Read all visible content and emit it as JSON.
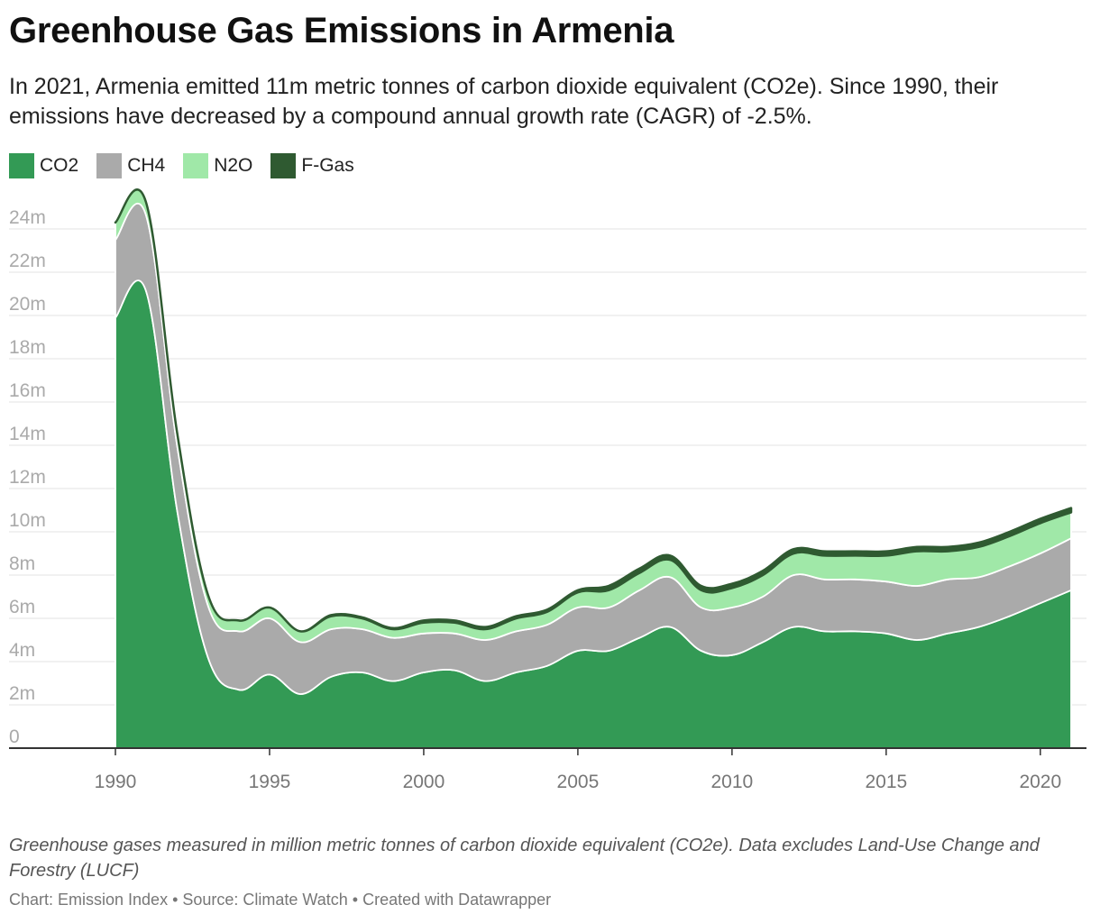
{
  "chart_data": {
    "type": "area",
    "stacked": true,
    "title": "Greenhouse Gas Emissions in Armenia",
    "subtitle": "In 2021, Armenia emitted 11m metric tonnes of carbon dioxide equivalent (CO2e). Since 1990, their emissions have decreased by a compound annual growth rate (CAGR) of -2.5%.",
    "notes": "Greenhouse gases measured in million metric tonnes of carbon dioxide equivalent (CO2e). Data excludes Land-Use Change and Forestry (LUCF)",
    "credit": "Chart: Emission Index • Source: Climate Watch • Created with Datawrapper",
    "x": [
      1990,
      1991,
      1992,
      1993,
      1994,
      1995,
      1996,
      1997,
      1998,
      1999,
      2000,
      2001,
      2002,
      2003,
      2004,
      2005,
      2006,
      2007,
      2008,
      2009,
      2010,
      2011,
      2012,
      2013,
      2014,
      2015,
      2016,
      2017,
      2018,
      2019,
      2020,
      2021
    ],
    "series": [
      {
        "name": "CO2",
        "color": "#339a55",
        "values": [
          19.9,
          21.1,
          11.0,
          4.2,
          2.7,
          3.4,
          2.5,
          3.3,
          3.5,
          3.1,
          3.5,
          3.6,
          3.1,
          3.5,
          3.8,
          4.5,
          4.5,
          5.1,
          5.6,
          4.5,
          4.3,
          4.9,
          5.6,
          5.4,
          5.4,
          5.3,
          5.0,
          5.3,
          5.6,
          6.1,
          6.7,
          7.3
        ]
      },
      {
        "name": "CH4",
        "color": "#aaaaaa",
        "values": [
          3.6,
          3.5,
          3.0,
          2.4,
          2.7,
          2.6,
          2.4,
          2.2,
          2.0,
          2.0,
          1.8,
          1.7,
          1.9,
          1.9,
          1.9,
          2.0,
          2.0,
          2.2,
          2.3,
          2.0,
          2.2,
          2.1,
          2.4,
          2.4,
          2.4,
          2.4,
          2.5,
          2.5,
          2.3,
          2.3,
          2.3,
          2.4
        ]
      },
      {
        "name": "N2O",
        "color": "#a0e8a8",
        "values": [
          0.8,
          0.6,
          0.6,
          0.5,
          0.5,
          0.5,
          0.5,
          0.6,
          0.5,
          0.4,
          0.5,
          0.5,
          0.5,
          0.6,
          0.6,
          0.7,
          0.8,
          0.8,
          0.8,
          0.8,
          0.9,
          1.0,
          1.0,
          1.1,
          1.1,
          1.2,
          1.6,
          1.3,
          1.4,
          1.4,
          1.4,
          1.2
        ]
      },
      {
        "name": "F-Gas",
        "color": "#2f5a31",
        "values": [
          0.0,
          0.0,
          0.0,
          0.0,
          0.0,
          0.0,
          0.0,
          0.05,
          0.05,
          0.05,
          0.1,
          0.1,
          0.1,
          0.1,
          0.1,
          0.1,
          0.2,
          0.2,
          0.2,
          0.2,
          0.2,
          0.2,
          0.2,
          0.2,
          0.2,
          0.2,
          0.2,
          0.2,
          0.2,
          0.2,
          0.2,
          0.2
        ]
      }
    ],
    "ylim": [
      0,
      25
    ],
    "yticks": [
      0,
      2,
      4,
      6,
      8,
      10,
      12,
      14,
      16,
      18,
      20,
      22,
      24
    ],
    "ytick_labels": [
      "0",
      "2m",
      "4m",
      "6m",
      "8m",
      "10m",
      "12m",
      "14m",
      "16m",
      "18m",
      "20m",
      "22m",
      "24m"
    ],
    "xticks": [
      1990,
      1995,
      2000,
      2005,
      2010,
      2015,
      2020
    ],
    "xtick_labels": [
      "1990",
      "1995",
      "2000",
      "2005",
      "2010",
      "2015",
      "2020"
    ],
    "xlim": [
      1990,
      2021
    ],
    "xlabel": "",
    "ylabel": "",
    "grid": true,
    "legend_position": "top-left"
  }
}
